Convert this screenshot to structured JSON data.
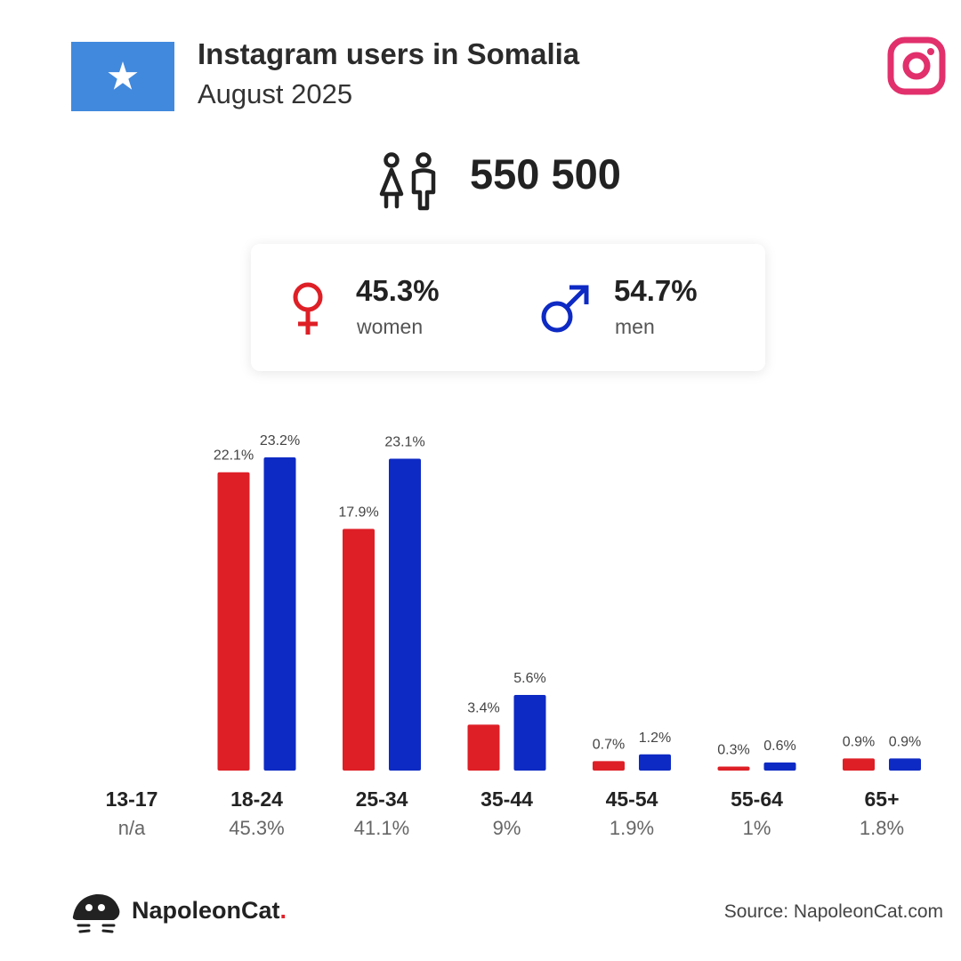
{
  "header": {
    "title": "Instagram users in Somalia",
    "subtitle": "August 2025"
  },
  "total": "550 500",
  "gender": {
    "women": {
      "pct": "45.3%",
      "label": "women"
    },
    "men": {
      "pct": "54.7%",
      "label": "men"
    }
  },
  "colors": {
    "women": "#de1f26",
    "men": "#0e2ac4",
    "flag": "#4189dd",
    "instagram": "#e1306c"
  },
  "icons": {
    "flag": "somalia-flag-icon",
    "platform": "instagram-icon",
    "people": "people-icon",
    "female": "female-symbol-icon",
    "male": "male-symbol-icon",
    "brand": "napoleoncat-logo-icon"
  },
  "chart_data": {
    "type": "bar",
    "categories": [
      "13-17",
      "18-24",
      "25-34",
      "35-44",
      "45-54",
      "55-64",
      "65+"
    ],
    "category_totals": [
      "n/a",
      "45.3%",
      "41.1%",
      "9%",
      "1.9%",
      "1%",
      "1.8%"
    ],
    "series": [
      {
        "key": "women",
        "values": [
          null,
          22.1,
          17.9,
          3.4,
          0.7,
          0.3,
          0.9
        ],
        "labels": [
          "",
          "22.1%",
          "17.9%",
          "3.4%",
          "0.7%",
          "0.3%",
          "0.9%"
        ]
      },
      {
        "key": "men",
        "values": [
          null,
          23.2,
          23.1,
          5.6,
          1.2,
          0.6,
          0.9
        ],
        "labels": [
          "",
          "23.2%",
          "23.1%",
          "5.6%",
          "1.2%",
          "0.6%",
          "0.9%"
        ]
      }
    ],
    "ylim": [
      0,
      23.2
    ],
    "grid": false,
    "legend": "none"
  },
  "footer": {
    "brand_name": "NapoleonCat",
    "brand_dot": ".",
    "source": "Source: NapoleonCat.com"
  }
}
